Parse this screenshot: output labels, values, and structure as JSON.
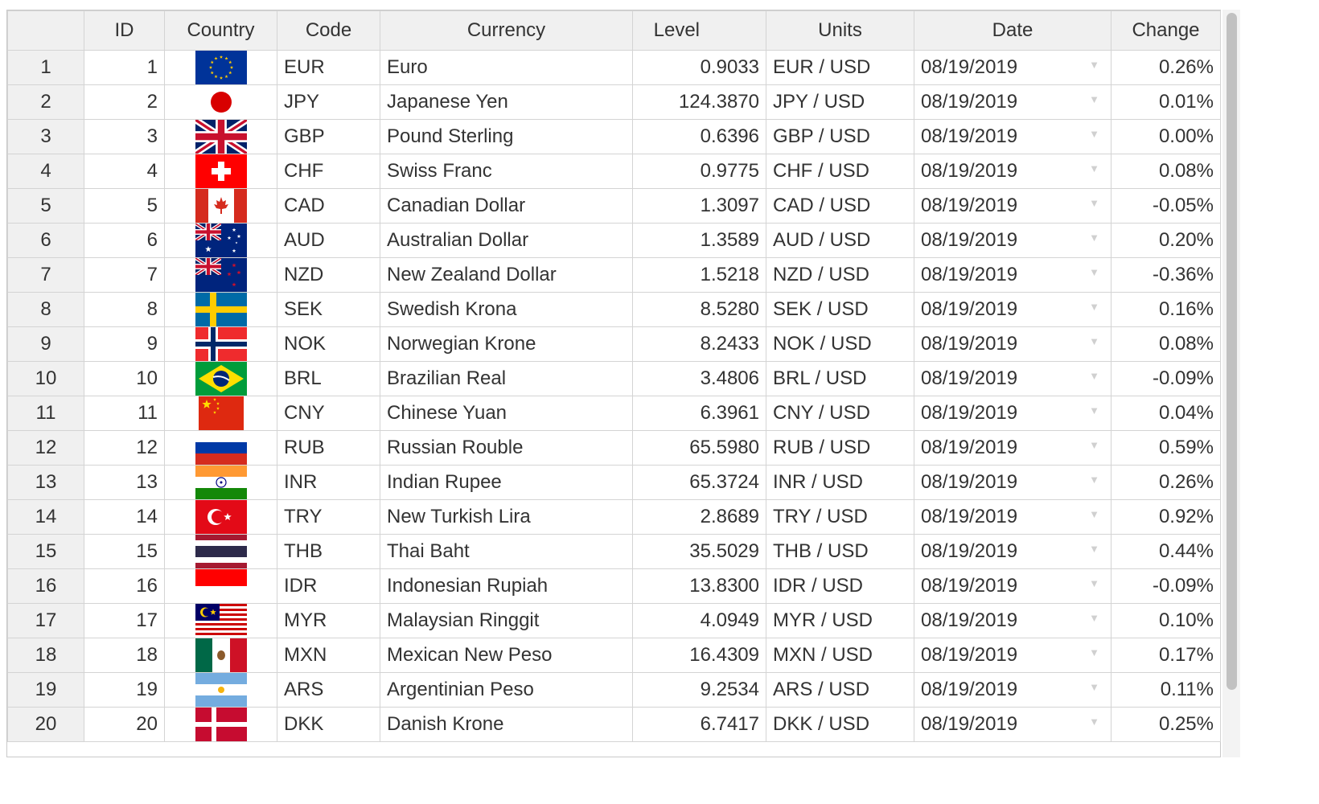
{
  "columns": [
    "",
    "ID",
    "Country",
    "Code",
    "Currency",
    "Level",
    "Units",
    "Date",
    "Change"
  ],
  "rows": [
    {
      "row": "1",
      "id": "1",
      "flag": "eu-flag-icon",
      "code": "EUR",
      "currency": "Euro",
      "level": "0.9033",
      "units": "EUR / USD",
      "date": "08/19/2019",
      "change": "0.26%"
    },
    {
      "row": "2",
      "id": "2",
      "flag": "japan-flag-icon",
      "code": "JPY",
      "currency": "Japanese Yen",
      "level": "124.3870",
      "units": "JPY / USD",
      "date": "08/19/2019",
      "change": "0.01%"
    },
    {
      "row": "3",
      "id": "3",
      "flag": "uk-flag-icon",
      "code": "GBP",
      "currency": "Pound Sterling",
      "level": "0.6396",
      "units": "GBP / USD",
      "date": "08/19/2019",
      "change": "0.00%"
    },
    {
      "row": "4",
      "id": "4",
      "flag": "switzerland-flag-icon",
      "code": "CHF",
      "currency": "Swiss Franc",
      "level": "0.9775",
      "units": "CHF / USD",
      "date": "08/19/2019",
      "change": "0.08%"
    },
    {
      "row": "5",
      "id": "5",
      "flag": "canada-flag-icon",
      "code": "CAD",
      "currency": "Canadian Dollar",
      "level": "1.3097",
      "units": "CAD / USD",
      "date": "08/19/2019",
      "change": "-0.05%"
    },
    {
      "row": "6",
      "id": "6",
      "flag": "australia-flag-icon",
      "code": "AUD",
      "currency": "Australian Dollar",
      "level": "1.3589",
      "units": "AUD / USD",
      "date": "08/19/2019",
      "change": "0.20%"
    },
    {
      "row": "7",
      "id": "7",
      "flag": "new-zealand-flag-icon",
      "code": "NZD",
      "currency": "New Zealand Dollar",
      "level": "1.5218",
      "units": "NZD / USD",
      "date": "08/19/2019",
      "change": "-0.36%"
    },
    {
      "row": "8",
      "id": "8",
      "flag": "sweden-flag-icon",
      "code": "SEK",
      "currency": "Swedish Krona",
      "level": "8.5280",
      "units": "SEK / USD",
      "date": "08/19/2019",
      "change": "0.16%"
    },
    {
      "row": "9",
      "id": "9",
      "flag": "norway-flag-icon",
      "code": "NOK",
      "currency": "Norwegian Krone",
      "level": "8.2433",
      "units": "NOK / USD",
      "date": "08/19/2019",
      "change": "0.08%"
    },
    {
      "row": "10",
      "id": "10",
      "flag": "brazil-flag-icon",
      "code": "BRL",
      "currency": "Brazilian Real",
      "level": "3.4806",
      "units": "BRL / USD",
      "date": "08/19/2019",
      "change": "-0.09%"
    },
    {
      "row": "11",
      "id": "11",
      "flag": "china-flag-icon",
      "code": "CNY",
      "currency": "Chinese Yuan",
      "level": "6.3961",
      "units": "CNY / USD",
      "date": "08/19/2019",
      "change": "0.04%"
    },
    {
      "row": "12",
      "id": "12",
      "flag": "russia-flag-icon",
      "code": "RUB",
      "currency": "Russian Rouble",
      "level": "65.5980",
      "units": "RUB / USD",
      "date": "08/19/2019",
      "change": "0.59%"
    },
    {
      "row": "13",
      "id": "13",
      "flag": "india-flag-icon",
      "code": "INR",
      "currency": "Indian Rupee",
      "level": "65.3724",
      "units": "INR / USD",
      "date": "08/19/2019",
      "change": "0.26%"
    },
    {
      "row": "14",
      "id": "14",
      "flag": "turkey-flag-icon",
      "code": "TRY",
      "currency": "New Turkish Lira",
      "level": "2.8689",
      "units": "TRY / USD",
      "date": "08/19/2019",
      "change": "0.92%"
    },
    {
      "row": "15",
      "id": "15",
      "flag": "thailand-flag-icon",
      "code": "THB",
      "currency": "Thai Baht",
      "level": "35.5029",
      "units": "THB / USD",
      "date": "08/19/2019",
      "change": "0.44%"
    },
    {
      "row": "16",
      "id": "16",
      "flag": "indonesia-flag-icon",
      "code": "IDR",
      "currency": "Indonesian Rupiah",
      "level": "13.8300",
      "units": "IDR / USD",
      "date": "08/19/2019",
      "change": "-0.09%"
    },
    {
      "row": "17",
      "id": "17",
      "flag": "malaysia-flag-icon",
      "code": "MYR",
      "currency": "Malaysian Ringgit",
      "level": "4.0949",
      "units": "MYR / USD",
      "date": "08/19/2019",
      "change": "0.10%"
    },
    {
      "row": "18",
      "id": "18",
      "flag": "mexico-flag-icon",
      "code": "MXN",
      "currency": "Mexican New Peso",
      "level": "16.4309",
      "units": "MXN / USD",
      "date": "08/19/2019",
      "change": "0.17%"
    },
    {
      "row": "19",
      "id": "19",
      "flag": "argentina-flag-icon",
      "code": "ARS",
      "currency": "Argentinian Peso",
      "level": "9.2534",
      "units": "ARS / USD",
      "date": "08/19/2019",
      "change": "0.11%"
    },
    {
      "row": "20",
      "id": "20",
      "flag": "denmark-flag-icon",
      "code": "DKK",
      "currency": "Danish Krone",
      "level": "6.7417",
      "units": "DKK / USD",
      "date": "08/19/2019",
      "change": "0.25%"
    }
  ],
  "date_dropdown_icon": "dropdown-arrow-icon"
}
